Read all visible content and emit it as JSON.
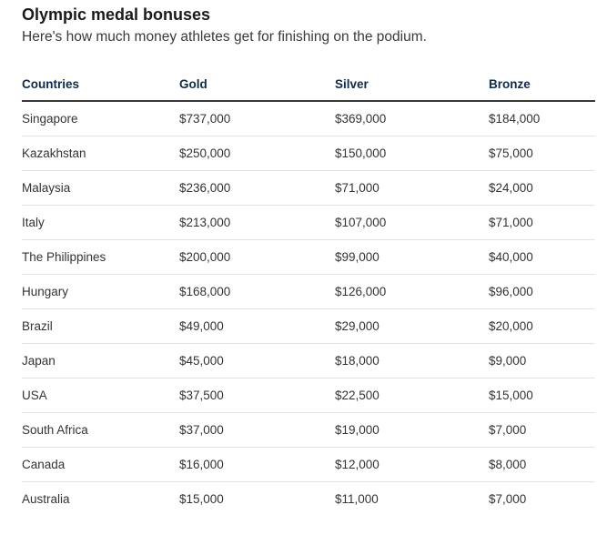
{
  "header": {
    "title": "Olympic medal bonuses",
    "subtitle": "Here's how much money athletes get for finishing on the podium."
  },
  "table": {
    "columns": [
      "Countries",
      "Gold",
      "Silver",
      "Bronze"
    ],
    "rows": [
      [
        "Singapore",
        "$737,000",
        "$369,000",
        "$184,000"
      ],
      [
        "Kazakhstan",
        "$250,000",
        "$150,000",
        "$75,000"
      ],
      [
        "Malaysia",
        "$236,000",
        "$71,000",
        "$24,000"
      ],
      [
        "Italy",
        "$213,000",
        "$107,000",
        "$71,000"
      ],
      [
        "The Philippines",
        "$200,000",
        "$99,000",
        "$40,000"
      ],
      [
        "Hungary",
        "$168,000",
        "$126,000",
        "$96,000"
      ],
      [
        "Brazil",
        "$49,000",
        "$29,000",
        "$20,000"
      ],
      [
        "Japan",
        "$45,000",
        "$18,000",
        "$9,000"
      ],
      [
        "USA",
        "$37,500",
        "$22,500",
        "$15,000"
      ],
      [
        "South Africa",
        "$37,000",
        "$19,000",
        "$7,000"
      ],
      [
        "Canada",
        "$16,000",
        "$12,000",
        "$8,000"
      ],
      [
        "Australia",
        "$15,000",
        "$11,000",
        "$7,000"
      ]
    ]
  }
}
